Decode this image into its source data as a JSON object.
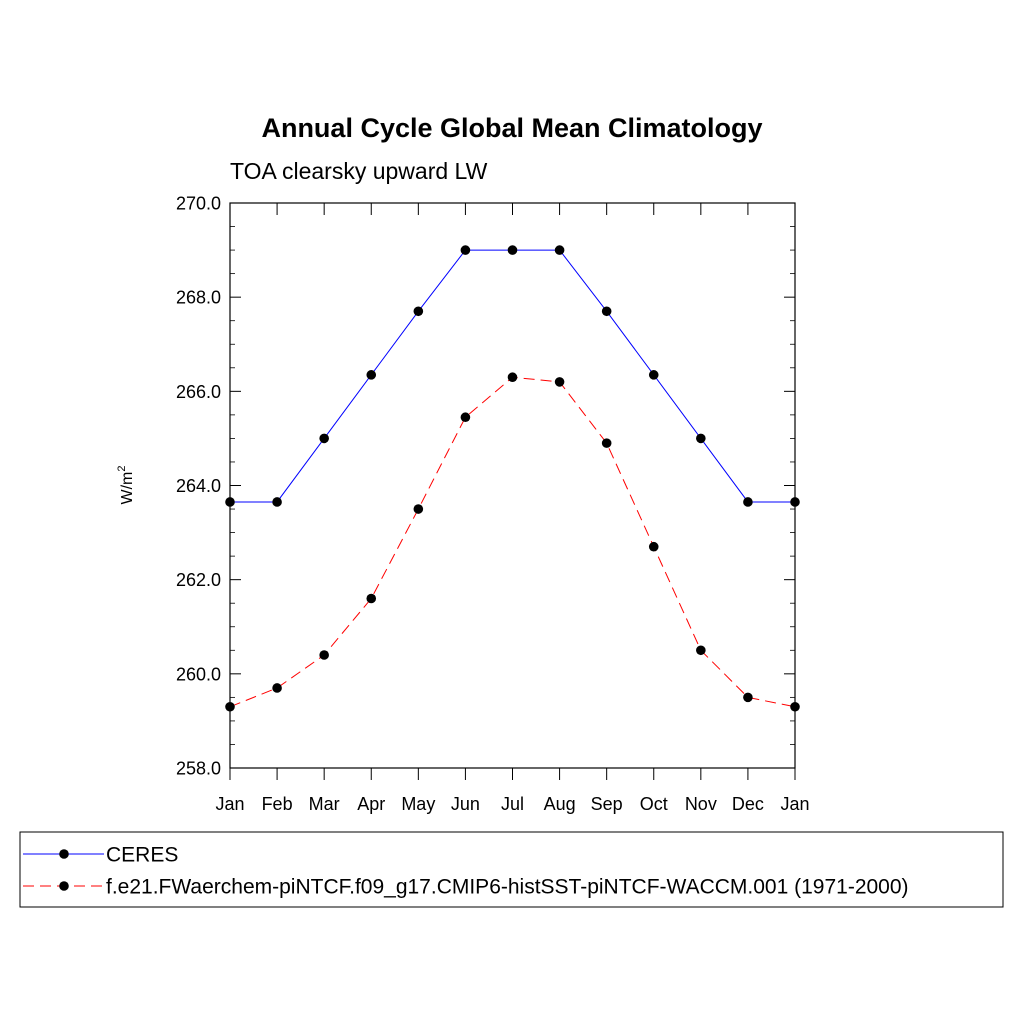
{
  "chart_data": {
    "type": "line",
    "title": "Annual Cycle Global Mean Climatology",
    "subtitle": "TOA clearsky upward LW",
    "xlabel": "",
    "ylabel": "W/m",
    "ylabel_superscript": "2",
    "categories": [
      "Jan",
      "Feb",
      "Mar",
      "Apr",
      "May",
      "Jun",
      "Jul",
      "Aug",
      "Sep",
      "Oct",
      "Nov",
      "Dec",
      "Jan"
    ],
    "ylim": [
      258.0,
      270.0
    ],
    "yticks": [
      "258.0",
      "260.0",
      "262.0",
      "264.0",
      "266.0",
      "268.0",
      "270.0"
    ],
    "grid": false,
    "legend_position": "bottom",
    "series": [
      {
        "name": "CERES",
        "color": "#0000ff",
        "dash": "solid",
        "marker": "filled-circle",
        "values": [
          263.65,
          263.65,
          265.0,
          266.35,
          267.7,
          269.0,
          269.0,
          269.0,
          267.7,
          266.35,
          265.0,
          263.65,
          263.65
        ]
      },
      {
        "name": "f.e21.FWaerchem-piNTCF.f09_g17.CMIP6-histSST-piNTCF-WACCM.001 (1971-2000)",
        "color": "#ff0000",
        "dash": "dashed",
        "marker": "filled-circle",
        "values": [
          259.3,
          259.7,
          260.4,
          261.6,
          263.5,
          265.45,
          266.3,
          266.2,
          264.9,
          262.7,
          260.5,
          259.5,
          259.3
        ]
      }
    ]
  }
}
